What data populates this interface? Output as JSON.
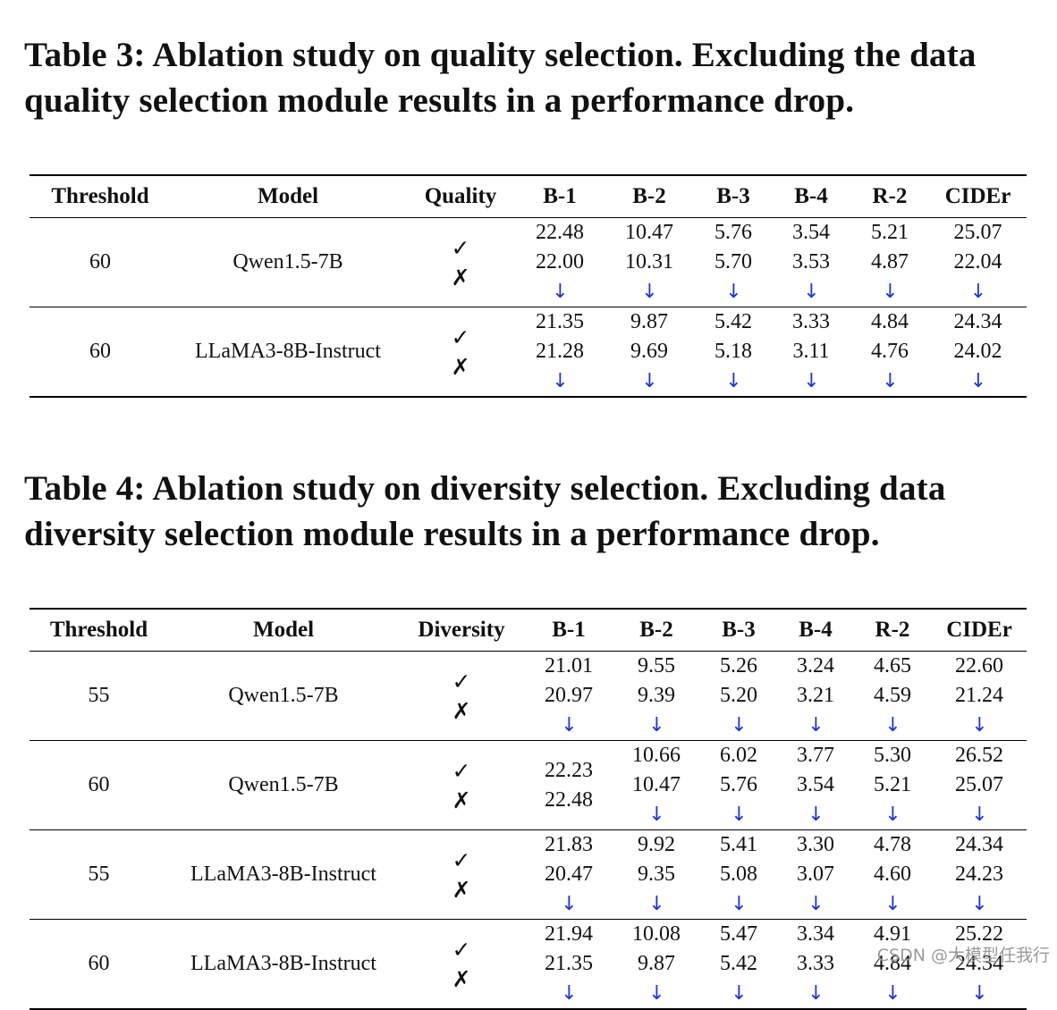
{
  "tables": [
    {
      "caption": "Table 3: Ablation study on quality selection. Excluding the data quality selection module results in a performance drop.",
      "headers": [
        "Threshold",
        "Model",
        "Quality",
        "B-1",
        "B-2",
        "B-3",
        "B-4",
        "R-2",
        "CIDEr"
      ],
      "rows": [
        {
          "threshold": "60",
          "model": "Qwen1.5-7B",
          "with_mark": "✓",
          "without_mark": "✗",
          "with": [
            "22.48",
            "10.47",
            "5.76",
            "3.54",
            "5.21",
            "25.07"
          ],
          "without": [
            "22.00",
            "10.31",
            "5.70",
            "3.53",
            "4.87",
            "22.04"
          ],
          "without_drop": [
            true,
            true,
            true,
            true,
            true,
            true
          ]
        },
        {
          "threshold": "60",
          "model": "LLaMA3-8B-Instruct",
          "with_mark": "✓",
          "without_mark": "✗",
          "with": [
            "21.35",
            "9.87",
            "5.42",
            "3.33",
            "4.84",
            "24.34"
          ],
          "without": [
            "21.28",
            "9.69",
            "5.18",
            "3.11",
            "4.76",
            "24.02"
          ],
          "without_drop": [
            true,
            true,
            true,
            true,
            true,
            true
          ]
        }
      ]
    },
    {
      "caption": "Table 4: Ablation study on diversity selection. Excluding data diversity selection module results in a performance drop.",
      "headers": [
        "Threshold",
        "Model",
        "Diversity",
        "B-1",
        "B-2",
        "B-3",
        "B-4",
        "R-2",
        "CIDEr"
      ],
      "rows": [
        {
          "threshold": "55",
          "model": "Qwen1.5-7B",
          "with_mark": "✓",
          "without_mark": "✗",
          "with": [
            "21.01",
            "9.55",
            "5.26",
            "3.24",
            "4.65",
            "22.60"
          ],
          "without": [
            "20.97",
            "9.39",
            "5.20",
            "3.21",
            "4.59",
            "21.24"
          ],
          "without_drop": [
            true,
            true,
            true,
            true,
            true,
            true
          ]
        },
        {
          "threshold": "60",
          "model": "Qwen1.5-7B",
          "with_mark": "✓",
          "without_mark": "✗",
          "with": [
            "22.23",
            "10.66",
            "6.02",
            "3.77",
            "5.30",
            "26.52"
          ],
          "without": [
            "22.48",
            "10.47",
            "5.76",
            "3.54",
            "5.21",
            "25.07"
          ],
          "without_drop": [
            false,
            true,
            true,
            true,
            true,
            true
          ]
        },
        {
          "threshold": "55",
          "model": "LLaMA3-8B-Instruct",
          "with_mark": "✓",
          "without_mark": "✗",
          "with": [
            "21.83",
            "9.92",
            "5.41",
            "3.30",
            "4.78",
            "24.34"
          ],
          "without": [
            "20.47",
            "9.35",
            "5.08",
            "3.07",
            "4.60",
            "24.23"
          ],
          "without_drop": [
            true,
            true,
            true,
            true,
            true,
            true
          ]
        },
        {
          "threshold": "60",
          "model": "LLaMA3-8B-Instruct",
          "with_mark": "✓",
          "without_mark": "✗",
          "with": [
            "21.94",
            "10.08",
            "5.47",
            "3.34",
            "4.91",
            "25.22"
          ],
          "without": [
            "21.35",
            "9.87",
            "5.42",
            "3.33",
            "4.84",
            "24.34"
          ],
          "without_drop": [
            true,
            true,
            true,
            true,
            true,
            true
          ]
        }
      ]
    }
  ],
  "drop_arrow": "↓",
  "drop_arrow_color": "#1f35d6",
  "watermark": "CSDN @大模型任我行"
}
